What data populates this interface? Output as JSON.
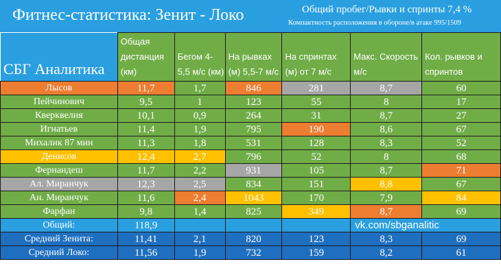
{
  "header": {
    "title": "Фитнес-статистика: Зенит - Локо",
    "subtitle_line1": "Общий пробег/Рывки и спринты 7,4 %",
    "subtitle_line2": "Компактность расположения в обороне/в атаке 995/1509",
    "brand": "СБГ Аналитика"
  },
  "columns": [
    "Общая дистанция (км)",
    "Бегом 4-5,5 м/с (км)",
    "На рывках (м) 5,5-7 м/с",
    "На спринтах (м) от 7 м/с",
    "Макс. Скорость м/с",
    "Кол. рывков и спринтов"
  ],
  "players": [
    {
      "name": "Лысов",
      "values": [
        "11,7",
        "1,7",
        "846",
        "281",
        "8,7",
        "60"
      ],
      "colors": [
        "o",
        "o",
        "g",
        "o",
        "gr",
        "gr",
        "g"
      ]
    },
    {
      "name": "Пейчинович",
      "values": [
        "9,5",
        "1",
        "123",
        "55",
        "8",
        "17"
      ],
      "colors": [
        "g",
        "g",
        "g",
        "g",
        "g",
        "g",
        "g"
      ]
    },
    {
      "name": "Кверквелия",
      "values": [
        "10,1",
        "0,9",
        "264",
        "31",
        "8,7",
        "27"
      ],
      "colors": [
        "g",
        "g",
        "g",
        "g",
        "g",
        "g",
        "g"
      ]
    },
    {
      "name": "Игнатьев",
      "values": [
        "11,4",
        "1,9",
        "795",
        "190",
        "8,6",
        "67"
      ],
      "colors": [
        "g",
        "g",
        "g",
        "g",
        "o",
        "g",
        "g"
      ]
    },
    {
      "name": "Михалик 87 мин",
      "values": [
        "11,3",
        "1,8",
        "531",
        "128",
        "8,3",
        "52"
      ],
      "colors": [
        "g",
        "g",
        "g",
        "g",
        "g",
        "g",
        "g"
      ]
    },
    {
      "name": "Денисов",
      "values": [
        "12,4",
        "2,7",
        "796",
        "52",
        "8",
        "68"
      ],
      "colors": [
        "y",
        "y",
        "y",
        "g",
        "g",
        "g",
        "g"
      ]
    },
    {
      "name": "Фернандеш",
      "values": [
        "11,7",
        "2,2",
        "931",
        "105",
        "8,7",
        "71"
      ],
      "colors": [
        "g",
        "g",
        "g",
        "gr",
        "g",
        "g",
        "o"
      ]
    },
    {
      "name": "Ал. Миранчук",
      "values": [
        "12,3",
        "2,5",
        "834",
        "151",
        "8,8",
        "67"
      ],
      "colors": [
        "gr",
        "gr",
        "gr",
        "g",
        "g",
        "y",
        "g"
      ]
    },
    {
      "name": "Ан. Миранчук",
      "values": [
        "11,6",
        "2,4",
        "1043",
        "170",
        "7,9",
        "84"
      ],
      "colors": [
        "g",
        "g",
        "o",
        "y",
        "g",
        "g",
        "y"
      ]
    },
    {
      "name": "Фарфан",
      "values": [
        "9,8",
        "1,4",
        "825",
        "349",
        "8,7",
        "69"
      ],
      "colors": [
        "g",
        "g",
        "g",
        "g",
        "y",
        "o",
        "g"
      ]
    }
  ],
  "total": {
    "label": "Общий:",
    "value": "118,9",
    "link": "vk.com/sbganalitic"
  },
  "averages": [
    {
      "label": "Средний Зенита:",
      "values": [
        "11,41",
        "2,1",
        "820",
        "123",
        "8,3",
        "69"
      ]
    },
    {
      "label": "Средний Локо:",
      "values": [
        "11,56",
        "1,9",
        "732",
        "159",
        "8,2",
        "61"
      ]
    }
  ],
  "colors": {
    "green": "#70ad47",
    "orange": "#ed7d31",
    "yellow": "#ffc000",
    "gray": "#a6a6a6",
    "blue": "#2a9fe0",
    "dark_blue": "#1f6fc0"
  }
}
